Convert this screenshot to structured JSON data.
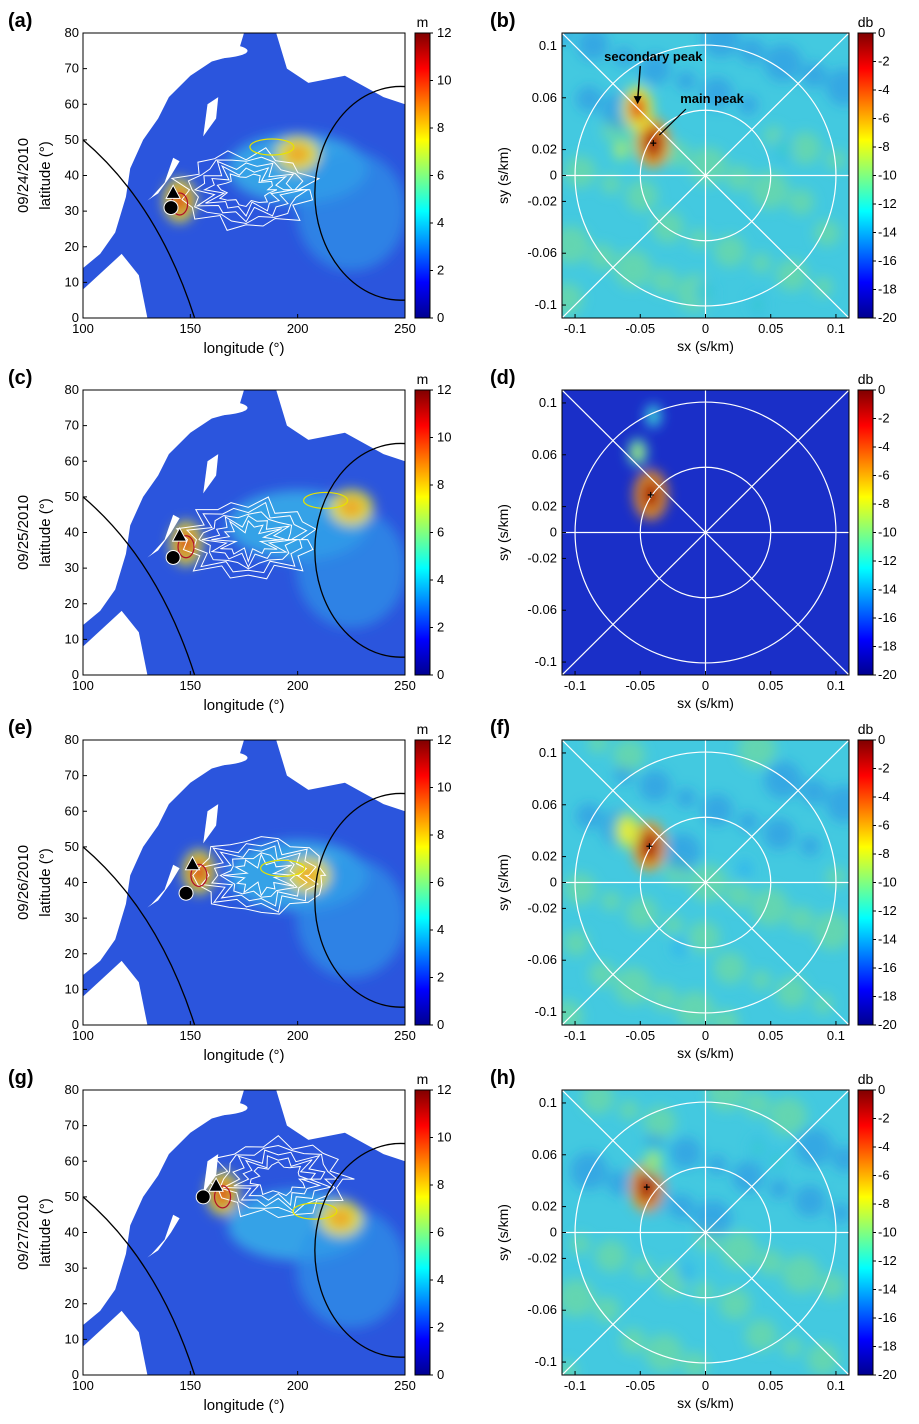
{
  "figure": {
    "colors": {
      "ocean_low": "#1d3fd6",
      "ocean_mid": "#2fb6e6",
      "ocean_teal": "#3fd1b2",
      "yellow": "#f2ee2a",
      "orange": "#f08a1e",
      "red": "#c81414",
      "land": "#ffffff",
      "grid": "#ffffff",
      "contour_white": "#ffffff",
      "contour_yellow": "#e7e200",
      "contour_red": "#b0102a",
      "axis": "#000000"
    },
    "colormap": [
      "#00008f",
      "#0000ff",
      "#0080ff",
      "#00ffff",
      "#80ff80",
      "#ffff00",
      "#ff8000",
      "#ff0000",
      "#800000"
    ],
    "map_panel": {
      "xlabel": "longitude (°)",
      "ylabel": "latitude (°)",
      "xticks": [
        100,
        150,
        200,
        250
      ],
      "yticks": [
        0,
        10,
        20,
        30,
        40,
        50,
        60,
        70,
        80
      ],
      "xlim": [
        100,
        250
      ],
      "ylim": [
        0,
        80
      ],
      "colorbar_unit": "m",
      "colorbar_ticks": [
        0,
        2,
        4,
        6,
        8,
        10,
        12
      ],
      "colorbar_range": [
        0,
        12
      ]
    },
    "beam_panel": {
      "xlabel": "sx (s/km)",
      "ylabel": "sy (s/km)",
      "xtick_labels": [
        "-0.1",
        "-0.05",
        "0",
        "0.05",
        "0.1"
      ],
      "ytick_labels": [
        "0.1",
        "0.06",
        "0.02",
        "0",
        "-0.02",
        "-0.06",
        "-0.1"
      ],
      "colorbar_unit": "db",
      "colorbar_ticks": [
        "0",
        "-2",
        "-4",
        "-6",
        "-8",
        "-10",
        "-12",
        "-14",
        "-16",
        "-18",
        "-20"
      ],
      "colorbar_range": [
        -20,
        0
      ]
    },
    "rows": [
      {
        "date": "09/24/2010",
        "map_label": "(a)",
        "beam_label": "(b)",
        "circle": [
          141,
          31
        ],
        "triangle": [
          142,
          35
        ],
        "map_variant": 0,
        "peaks": [
          [
            -0.04,
            0.025,
            1.0
          ],
          [
            -0.052,
            0.052,
            0.85
          ],
          [
            -0.065,
            0.02,
            0.45
          ],
          [
            0.06,
            0.02,
            0.4
          ],
          [
            0.0,
            -0.09,
            0.35
          ],
          [
            0.04,
            -0.1,
            0.35
          ]
        ],
        "annotations": [
          "secondary peak",
          "main peak"
        ]
      },
      {
        "date": "09/25/2010",
        "map_label": "(c)",
        "beam_label": "(d)",
        "circle": [
          142,
          33
        ],
        "triangle": [
          145,
          39
        ],
        "map_variant": 1,
        "peaks": [
          [
            -0.042,
            0.029,
            1.0
          ],
          [
            -0.052,
            0.062,
            0.45
          ],
          [
            -0.04,
            0.09,
            0.35
          ]
        ],
        "annotations": []
      },
      {
        "date": "09/26/2010",
        "map_label": "(e)",
        "beam_label": "(f)",
        "circle": [
          148,
          37
        ],
        "triangle": [
          151,
          45
        ],
        "map_variant": 2,
        "peaks": [
          [
            -0.043,
            0.028,
            1.0
          ],
          [
            -0.06,
            0.04,
            0.65
          ],
          [
            0.03,
            0.01,
            0.3
          ],
          [
            -0.02,
            -0.05,
            0.3
          ]
        ],
        "annotations": []
      },
      {
        "date": "09/27/2010",
        "map_label": "(g)",
        "beam_label": "(h)",
        "circle": [
          156,
          50
        ],
        "triangle": [
          162,
          53
        ],
        "map_variant": 3,
        "peaks": [
          [
            -0.045,
            0.035,
            1.0
          ],
          [
            -0.04,
            0.055,
            0.5
          ],
          [
            0.04,
            0.065,
            0.35
          ],
          [
            0.055,
            0.055,
            0.35
          ],
          [
            -0.015,
            -0.03,
            0.3
          ]
        ],
        "annotations": []
      }
    ]
  }
}
